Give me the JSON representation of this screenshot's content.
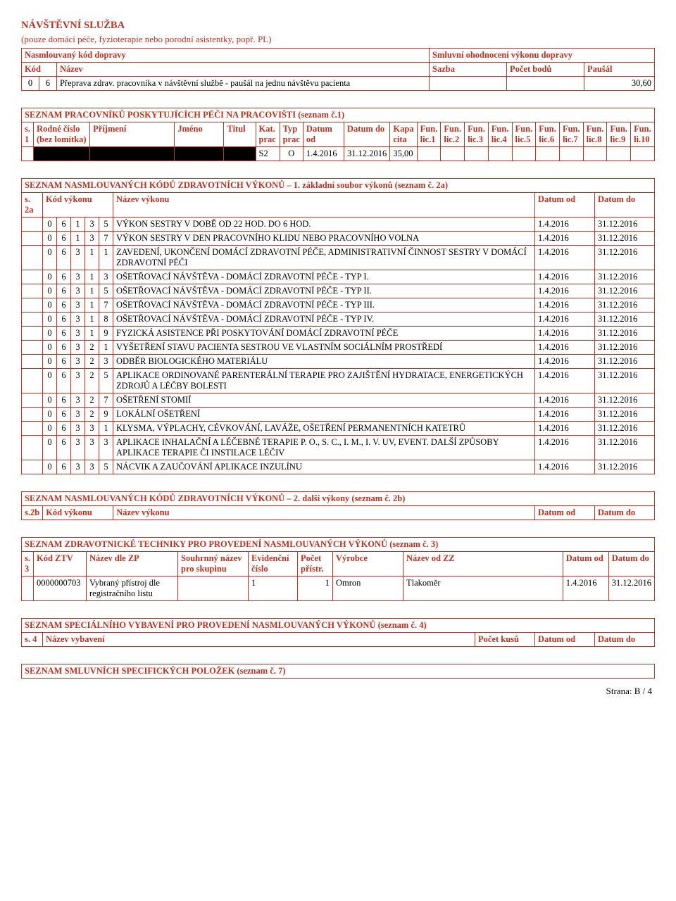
{
  "visit_service": {
    "title": "NÁVŠTĚVNÍ SLUŽBA",
    "subtitle": "(pouze domácí péče, fyzioterapie nebo porodní asistentky, popř. PL)",
    "left_header": "Nasmlouvaný kód dopravy",
    "right_header": "Smluvní ohodnocení výkonu dopravy",
    "cols": {
      "kod": "Kód",
      "nazev": "Název",
      "sazba": "Sazba",
      "pocet": "Počet bodů",
      "pausal": "Paušál"
    },
    "row": {
      "k1": "0",
      "k2": "6",
      "nazev": "Přeprava zdrav. pracovníka v návštěvní službě - paušál na jednu návštěvu pacienta",
      "pausal": "30,60"
    }
  },
  "workers": {
    "title": "SEZNAM PRACOVNÍKŮ POSKYTUJÍCÍCH PÉČI NA PRACOVIŠTI (seznam č.1)",
    "cols": {
      "s1": "s.\n1",
      "rodne": "Rodné číslo\n(bez lomítka)",
      "prijmeni": "Příjmení",
      "jmeno": "Jméno",
      "titul": "Titul",
      "kat": "Kat.\nprac",
      "typ": "Typ\nprac",
      "datum_od": "Datum od",
      "datum_do": "Datum do",
      "kapa": "Kapa\ncita",
      "l1": "Fun.\nlic.1",
      "l2": "Fun.\nlic.2",
      "l3": "Fun.\nlic.3",
      "l4": "Fun.\nlic.4",
      "l5": "Fun.\nlic.5",
      "l6": "Fun.\nlic.6",
      "l7": "Fun.\nlic.7",
      "l8": "Fun.\nlic.8",
      "l9": "Fun.\nlic.9",
      "l10": "Fun.\nli.10"
    },
    "row": {
      "kat": "S2",
      "typ": "O",
      "od": "1.4.2016",
      "do": "31.12.2016",
      "kapa": "35,00"
    }
  },
  "codes2a": {
    "title": "SEZNAM NASMLOUVANÝCH KÓDŮ ZDRAVOTNÍCH VÝKONŮ – 1. základní soubor výkonů (seznam č. 2a)",
    "cols": {
      "s2a": "s. 2a",
      "kod": "Kód výkonu",
      "nazev": "Název výkonu",
      "od": "Datum od",
      "do": "Datum do"
    },
    "rows": [
      {
        "c": [
          "0",
          "6",
          "1",
          "3",
          "5"
        ],
        "n": "VÝKON SESTRY V DOBĚ OD 22 HOD. DO 6 HOD.",
        "od": "1.4.2016",
        "do": "31.12.2016"
      },
      {
        "c": [
          "0",
          "6",
          "1",
          "3",
          "7"
        ],
        "n": "VÝKON SESTRY V DEN PRACOVNÍHO KLIDU NEBO PRACOVNÍHO VOLNA",
        "od": "1.4.2016",
        "do": "31.12.2016"
      },
      {
        "c": [
          "0",
          "6",
          "3",
          "1",
          "1"
        ],
        "n": "ZAVEDENÍ, UKONČENÍ DOMÁCÍ ZDRAVOTNÍ PÉČE, ADMINISTRATIVNÍ ČINNOST SESTRY V DOMÁCÍ ZDRAVOTNÍ PÉČI",
        "od": "1.4.2016",
        "do": "31.12.2016"
      },
      {
        "c": [
          "0",
          "6",
          "3",
          "1",
          "3"
        ],
        "n": "OŠETŘOVACÍ NÁVŠTĚVA - DOMÁCÍ ZDRAVOTNÍ PÉČE - TYP I.",
        "od": "1.4.2016",
        "do": "31.12.2016"
      },
      {
        "c": [
          "0",
          "6",
          "3",
          "1",
          "5"
        ],
        "n": "OŠETŘOVACÍ NÁVŠTĚVA - DOMÁCÍ ZDRAVOTNÍ PÉČE - TYP II.",
        "od": "1.4.2016",
        "do": "31.12.2016"
      },
      {
        "c": [
          "0",
          "6",
          "3",
          "1",
          "7"
        ],
        "n": "OŠETŘOVACÍ NÁVŠTĚVA - DOMÁCÍ ZDRAVOTNÍ PÉČE - TYP III.",
        "od": "1.4.2016",
        "do": "31.12.2016"
      },
      {
        "c": [
          "0",
          "6",
          "3",
          "1",
          "8"
        ],
        "n": "OŠETŘOVACÍ NÁVŠTĚVA - DOMÁCÍ ZDRAVOTNÍ PÉČE - TYP IV.",
        "od": "1.4.2016",
        "do": "31.12.2016"
      },
      {
        "c": [
          "0",
          "6",
          "3",
          "1",
          "9"
        ],
        "n": "FYZICKÁ ASISTENCE PŘI POSKYTOVÁNÍ DOMÁCÍ ZDRAVOTNÍ PÉČE",
        "od": "1.4.2016",
        "do": "31.12.2016"
      },
      {
        "c": [
          "0",
          "6",
          "3",
          "2",
          "1"
        ],
        "n": "VYŠETŘENÍ STAVU PACIENTA SESTROU VE VLASTNÍM SOCIÁLNÍM PROSTŘEDÍ",
        "od": "1.4.2016",
        "do": "31.12.2016"
      },
      {
        "c": [
          "0",
          "6",
          "3",
          "2",
          "3"
        ],
        "n": "ODBĚR BIOLOGICKÉHO MATERIÁLU",
        "od": "1.4.2016",
        "do": "31.12.2016"
      },
      {
        "c": [
          "0",
          "6",
          "3",
          "2",
          "5"
        ],
        "n": "APLIKACE ORDINOVANÉ PARENTERÁLNÍ TERAPIE PRO ZAJIŠTĚNÍ HYDRATACE, ENERGETICKÝCH ZDROJŮ A LÉČBY BOLESTI",
        "od": "1.4.2016",
        "do": "31.12.2016"
      },
      {
        "c": [
          "0",
          "6",
          "3",
          "2",
          "7"
        ],
        "n": "OŠETŘENÍ STOMIÍ",
        "od": "1.4.2016",
        "do": "31.12.2016"
      },
      {
        "c": [
          "0",
          "6",
          "3",
          "2",
          "9"
        ],
        "n": "LOKÁLNÍ OŠETŘENÍ",
        "od": "1.4.2016",
        "do": "31.12.2016"
      },
      {
        "c": [
          "0",
          "6",
          "3",
          "3",
          "1"
        ],
        "n": "KLYSMA, VÝPLACHY, CÉVKOVÁNÍ, LAVÁŽE, OŠETŘENÍ PERMANENTNÍCH KATETRŮ",
        "od": "1.4.2016",
        "do": "31.12.2016"
      },
      {
        "c": [
          "0",
          "6",
          "3",
          "3",
          "3"
        ],
        "n": "APLIKACE INHALAČNÍ A LÉČEBNÉ TERAPIE P. O., S. C., I. M., I. V. UV, EVENT. DALŠÍ ZPŮSOBY APLIKACE TERAPIE ČI INSTILACE LÉČIV",
        "od": "1.4.2016",
        "do": "31.12.2016"
      },
      {
        "c": [
          "0",
          "6",
          "3",
          "3",
          "5"
        ],
        "n": "NÁCVIK A ZAUČOVÁNÍ APLIKACE INZULÍNU",
        "od": "1.4.2016",
        "do": "31.12.2016"
      }
    ]
  },
  "codes2b": {
    "title": "SEZNAM NASMLOUVANÝCH KÓDŮ ZDRAVOTNÍCH VÝKONŮ – 2. další výkony (seznam č. 2b)",
    "cols": {
      "s2b": "s.2b",
      "kod": "Kód výkonu",
      "nazev": "Název výkonu",
      "od": "Datum od",
      "do": "Datum do"
    }
  },
  "tech": {
    "title": "SEZNAM ZDRAVOTNICKÉ TECHNIKY PRO PROVEDENÍ NASMLOUVANÝCH VÝKONŮ (seznam č. 3)",
    "cols": {
      "s3": "s.\n3",
      "kod": "Kód ZTV",
      "nazev": "Název dle ZP",
      "souhrn": "Souhrnný název\npro skupinu",
      "evid": "Evidenční\nčíslo",
      "pocet": "Počet\npřístr.",
      "vyrobce": "Výrobce",
      "nazevzz": "Název od ZZ",
      "od": "Datum od",
      "do": "Datum do"
    },
    "row": {
      "kod": "0000000703",
      "nazev": "Vybraný přístroj dle registračního listu",
      "evid": "1",
      "pocet": "1",
      "vyrobce": "Omron",
      "nazevzz": "Tlakoměr",
      "od": "1.4.2016",
      "do": "31.12.2016"
    }
  },
  "spec": {
    "title": "SEZNAM SPECIÁLNÍHO VYBAVENÍ PRO PROVEDENÍ NASMLOUVANÝCH VÝKONŮ (seznam č. 4)",
    "cols": {
      "s4": "s. 4",
      "nazev": "Název vybavení",
      "pocet": "Počet kusů",
      "od": "Datum od",
      "do": "Datum do"
    }
  },
  "sec7": {
    "title": "SEZNAM SMLUVNÍCH SPECIFICKÝCH POLOŽEK (seznam č. 7)"
  },
  "footer": "Strana: B / 4"
}
